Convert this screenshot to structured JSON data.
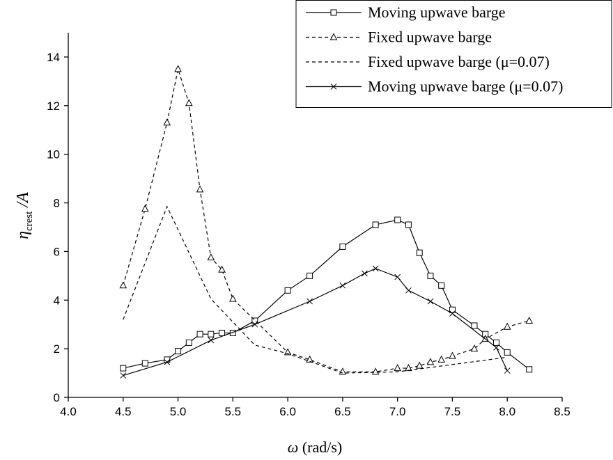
{
  "chart_data": {
    "type": "line",
    "x_label": {
      "symbol": "ω",
      "unit": "(rad/s)"
    },
    "y_label": {
      "symbol": "η",
      "subscript": "crest",
      "suffix": "/A"
    },
    "xlim": [
      4.0,
      8.5
    ],
    "xticks": [
      {
        "value": 4.0,
        "label": "4.0"
      },
      {
        "value": 4.5,
        "label": "4.5"
      },
      {
        "value": 5.0,
        "label": "5.0"
      },
      {
        "value": 5.5,
        "label": "5.5"
      },
      {
        "value": 6.0,
        "label": "6.0"
      },
      {
        "value": 6.5,
        "label": "6.5"
      },
      {
        "value": 7.0,
        "label": "7.0"
      },
      {
        "value": 7.5,
        "label": "7.5"
      },
      {
        "value": 8.0,
        "label": "8.0"
      },
      {
        "value": 8.5,
        "label": "8.5"
      }
    ],
    "ylim": [
      0,
      15
    ],
    "yticks": [
      0,
      2,
      4,
      6,
      8,
      10,
      12,
      14
    ],
    "legend": "top-right",
    "series": [
      {
        "name": "Moving upwave barge",
        "color": "#000000",
        "marker": "square",
        "dash": "solid",
        "x": [
          4.5,
          4.7,
          4.9,
          5.0,
          5.1,
          5.2,
          5.3,
          5.4,
          5.5,
          5.7,
          6.0,
          6.2,
          6.5,
          6.8,
          7.0,
          7.1,
          7.2,
          7.3,
          7.4,
          7.5,
          7.7,
          7.8,
          7.9,
          8.0,
          8.2
        ],
        "values": [
          1.2,
          1.4,
          1.55,
          1.9,
          2.25,
          2.6,
          2.6,
          2.65,
          2.65,
          3.15,
          4.4,
          5.0,
          6.2,
          7.1,
          7.3,
          7.1,
          5.95,
          5.0,
          4.6,
          3.6,
          2.95,
          2.6,
          2.25,
          1.85,
          1.15
        ]
      },
      {
        "name": "Fixed upwave barge",
        "color": "#000000",
        "marker": "triangle",
        "dash": "dashed",
        "x": [
          4.5,
          4.7,
          4.9,
          5.0,
          5.1,
          5.2,
          5.3,
          5.4,
          5.5,
          6.0,
          6.2,
          6.5,
          6.8,
          7.0,
          7.1,
          7.2,
          7.3,
          7.4,
          7.5,
          7.7,
          7.8,
          8.0,
          8.2
        ],
        "values": [
          4.6,
          7.75,
          11.3,
          13.5,
          12.1,
          8.55,
          5.75,
          5.25,
          4.05,
          1.85,
          1.55,
          1.05,
          1.05,
          1.2,
          1.2,
          1.3,
          1.45,
          1.55,
          1.7,
          2.0,
          2.4,
          2.9,
          3.15
        ]
      },
      {
        "name": "Fixed upwave barge (μ=0.07)",
        "color": "#000000",
        "marker": "none",
        "dash": "dashed",
        "x": [
          4.5,
          4.9,
          5.3,
          5.7,
          6.0,
          6.5,
          7.0,
          8.0
        ],
        "values": [
          3.2,
          7.85,
          4.05,
          2.15,
          1.8,
          1.0,
          1.05,
          1.65
        ]
      },
      {
        "name": "Moving upwave barge (μ=0.07)",
        "color": "#000000",
        "marker": "cross",
        "dash": "solid",
        "x": [
          4.5,
          4.9,
          5.3,
          5.7,
          6.2,
          6.5,
          6.7,
          6.8,
          7.0,
          7.1,
          7.3,
          7.5,
          7.9,
          8.0
        ],
        "values": [
          0.9,
          1.45,
          2.35,
          3.0,
          3.95,
          4.6,
          5.1,
          5.3,
          4.95,
          4.4,
          3.95,
          3.45,
          2.05,
          1.1
        ]
      }
    ]
  }
}
